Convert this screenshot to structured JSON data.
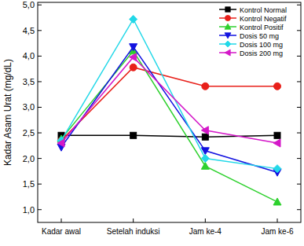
{
  "chart_data": {
    "type": "line",
    "y_label": "Kadar Asam Urat (mg/dL)",
    "categories": [
      "Kadar awal",
      "Setelah induksi",
      "Jam ke-4",
      "Jam ke-6"
    ],
    "series": [
      {
        "name": "Kontrol Normal",
        "color": "#000000",
        "marker": "square",
        "line_style": "solid",
        "values": [
          2.45,
          2.45,
          2.42,
          2.45
        ]
      },
      {
        "name": "Kontrol Negatif",
        "color": "#e8201a",
        "marker": "circle",
        "line_style": "solid",
        "values": [
          2.35,
          3.78,
          3.41,
          3.41
        ]
      },
      {
        "name": "Kontrol Positif",
        "color": "#2ed12e",
        "marker": "triangle-up",
        "line_style": "solid",
        "values": [
          2.38,
          4.1,
          1.85,
          1.15
        ]
      },
      {
        "name": "Dosis 50 mg",
        "color": "#1212e0",
        "marker": "triangle-down",
        "line_style": "solid",
        "values": [
          2.22,
          4.18,
          2.15,
          1.73
        ]
      },
      {
        "name": "Dosis 100 mg",
        "color": "#22d8e8",
        "marker": "diamond",
        "line_style": "solid",
        "values": [
          2.35,
          4.72,
          2.0,
          1.8
        ]
      },
      {
        "name": "Dosis 200 mg",
        "color": "#d418c8",
        "marker": "triangle-left",
        "line_style": "solid",
        "values": [
          2.3,
          3.98,
          2.55,
          2.3
        ]
      }
    ],
    "ylim": [
      0.75,
      5.05
    ],
    "yticks": [
      {
        "value": 1.0,
        "label": "1,0"
      },
      {
        "value": 1.5,
        "label": "1,5"
      },
      {
        "value": 2.0,
        "label": "2,0"
      },
      {
        "value": 2.5,
        "label": "2,5"
      },
      {
        "value": 3.0,
        "label": "3,0"
      },
      {
        "value": 3.5,
        "label": "3,5"
      },
      {
        "value": 4.0,
        "label": "4,0"
      },
      {
        "value": 4.5,
        "label": "4,5"
      },
      {
        "value": 5.0,
        "label": "5,0"
      }
    ],
    "grid": false,
    "legend": "top-right"
  }
}
